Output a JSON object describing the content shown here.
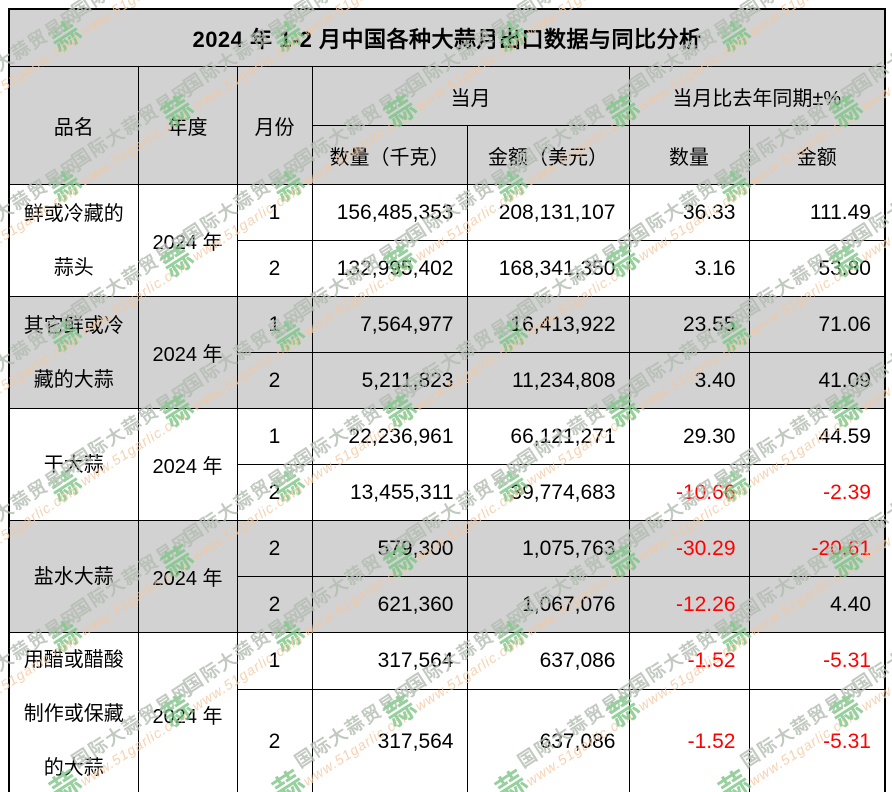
{
  "title": "2024 年 1-2 月中国各种大蒜月出口数据与同比分析",
  "header": {
    "product": "品名",
    "year": "年度",
    "month": "月份",
    "current_month": "当月",
    "yoy": "当月比去年同期±%",
    "qty_kg": "数量（千克）",
    "amount_usd": "金额（美元）",
    "qty": "数量",
    "amount": "金额"
  },
  "groups": [
    {
      "product_lines": [
        "鲜或冷藏的",
        "蒜头"
      ],
      "year": "2024 年",
      "shaded": false,
      "rows": [
        {
          "month": "1",
          "qty": "156,485,353",
          "amount": "208,131,107",
          "qty_pct": "36.33",
          "amount_pct": "111.49"
        },
        {
          "month": "2",
          "qty": "132,995,402",
          "amount": "168,341,350",
          "qty_pct": "3.16",
          "amount_pct": "53.80"
        }
      ]
    },
    {
      "product_lines": [
        "其它鲜或冷",
        "藏的大蒜"
      ],
      "year": "2024 年",
      "shaded": true,
      "rows": [
        {
          "month": "1",
          "qty": "7,564,977",
          "amount": "16,413,922",
          "qty_pct": "23.55",
          "amount_pct": "71.06"
        },
        {
          "month": "2",
          "qty": "5,211,823",
          "amount": "11,234,808",
          "qty_pct": "3.40",
          "amount_pct": "41.09"
        }
      ]
    },
    {
      "product_lines": [
        "干大蒜"
      ],
      "year": "2024 年",
      "shaded": false,
      "rows": [
        {
          "month": "1",
          "qty": "22,236,961",
          "amount": "66,121,271",
          "qty_pct": "29.30",
          "amount_pct": "44.59"
        },
        {
          "month": "2",
          "qty": "13,455,311",
          "amount": "39,774,683",
          "qty_pct": "-10.66",
          "amount_pct": "-2.39"
        }
      ]
    },
    {
      "product_lines": [
        "盐水大蒜"
      ],
      "year": "2024 年",
      "shaded": true,
      "rows": [
        {
          "month": "2",
          "qty": "579,300",
          "amount": "1,075,763",
          "qty_pct": "-30.29",
          "amount_pct": "-20.61"
        },
        {
          "month": "2",
          "qty": "621,360",
          "amount": "1,067,076",
          "qty_pct": "-12.26",
          "amount_pct": "4.40"
        }
      ]
    },
    {
      "product_lines": [
        "用醋或醋酸",
        "制作或保藏",
        "的大蒜"
      ],
      "year": "2024 年",
      "shaded": false,
      "rows": [
        {
          "month": "1",
          "qty": "317,564",
          "amount": "637,086",
          "qty_pct": "-1.52",
          "amount_pct": "-5.31"
        },
        {
          "month": "2",
          "qty": "317,564",
          "amount": "637,086",
          "qty_pct": "-1.52",
          "amount_pct": "-5.31"
        }
      ]
    }
  ],
  "watermark": {
    "logo": "蒜",
    "site": "国际大蒜贸易网",
    "url": "www.51garlic.com"
  },
  "colors": {
    "header_bg": "#d2d2d2",
    "negative": "#ff0000",
    "border_color": "#000000",
    "wm_logo": "#7cc585",
    "wm_site": "#b2bcb1",
    "wm_url": "#f4c79e"
  },
  "chart_data": {
    "type": "table",
    "title": "2024 年 1-2 月中国各种大蒜月出口数据与同比分析",
    "columns": [
      "品名",
      "年度",
      "月份",
      "当月 数量（千克）",
      "当月 金额（美元）",
      "当月比去年同期±% 数量",
      "当月比去年同期±% 金额"
    ],
    "rows": [
      [
        "鲜或冷藏的蒜头",
        "2024 年",
        1,
        156485353,
        208131107,
        36.33,
        111.49
      ],
      [
        "鲜或冷藏的蒜头",
        "2024 年",
        2,
        132995402,
        168341350,
        3.16,
        53.8
      ],
      [
        "其它鲜或冷藏的大蒜",
        "2024 年",
        1,
        7564977,
        16413922,
        23.55,
        71.06
      ],
      [
        "其它鲜或冷藏的大蒜",
        "2024 年",
        2,
        5211823,
        11234808,
        3.4,
        41.09
      ],
      [
        "干大蒜",
        "2024 年",
        1,
        22236961,
        66121271,
        29.3,
        44.59
      ],
      [
        "干大蒜",
        "2024 年",
        2,
        13455311,
        39774683,
        -10.66,
        -2.39
      ],
      [
        "盐水大蒜",
        "2024 年",
        2,
        579300,
        1075763,
        -30.29,
        -20.61
      ],
      [
        "盐水大蒜",
        "2024 年",
        2,
        621360,
        1067076,
        -12.26,
        4.4
      ],
      [
        "用醋或醋酸制作或保藏的大蒜",
        "2024 年",
        1,
        317564,
        637086,
        -1.52,
        -5.31
      ],
      [
        "用醋或醋酸制作或保藏的大蒜",
        "2024 年",
        2,
        317564,
        637086,
        -1.52,
        -5.31
      ]
    ]
  }
}
